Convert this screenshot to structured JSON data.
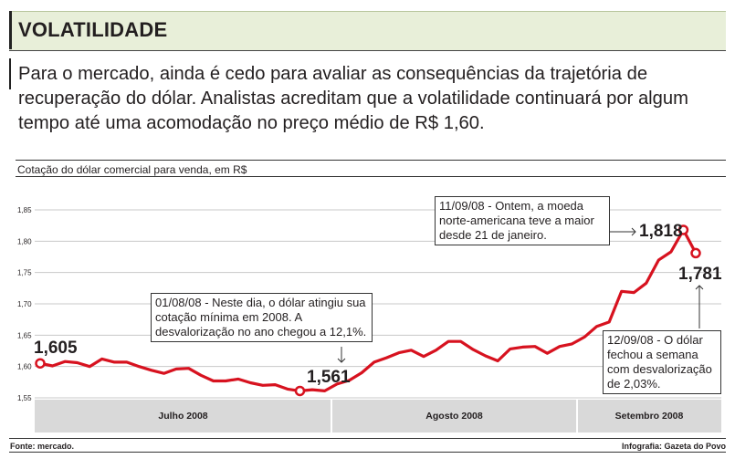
{
  "header": {
    "title": "VOLATILIDADE"
  },
  "intro": "Para o mercado, ainda é cedo para avaliar as consequências da trajetória de recuperação do dólar. Analistas acreditam que a volatilidade continuará por algum tempo até uma acomodação no preço médio de R$ 1,60.",
  "colors": {
    "line": "#d7121f",
    "grid": "#c8c8c8",
    "band": "#d9d9d9",
    "header_bg": "#e8efd9"
  },
  "chart_data": {
    "type": "line",
    "title": "Cotação do dólar comercial para venda, em R$",
    "ylim": [
      1.55,
      1.85
    ],
    "y_ticks": [
      "1,85",
      "1,80",
      "1,75",
      "1,70",
      "1,65",
      "1,60",
      "1,55"
    ],
    "y_tick_values": [
      1.85,
      1.8,
      1.75,
      1.7,
      1.65,
      1.6,
      1.55
    ],
    "grid": true,
    "months": [
      {
        "label": "Julho 2008",
        "start": 0,
        "end": 21
      },
      {
        "label": "Agosto 2008",
        "start": 21,
        "end": 38
      },
      {
        "label": "Setembro 2008",
        "start": 38,
        "end": 47
      }
    ],
    "series": [
      {
        "name": "Dólar comercial (venda)",
        "values": [
          1.605,
          1.601,
          1.608,
          1.606,
          1.6,
          1.612,
          1.607,
          1.607,
          1.6,
          1.594,
          1.589,
          1.596,
          1.597,
          1.586,
          1.577,
          1.577,
          1.58,
          1.574,
          1.57,
          1.571,
          1.564,
          1.561,
          1.563,
          1.561,
          1.572,
          1.578,
          1.59,
          1.607,
          1.614,
          1.622,
          1.626,
          1.616,
          1.626,
          1.64,
          1.64,
          1.627,
          1.617,
          1.609,
          1.628,
          1.631,
          1.632,
          1.621,
          1.632,
          1.636,
          1.647,
          1.664,
          1.671,
          1.72,
          1.718,
          1.733,
          1.77,
          1.783,
          1.818,
          1.781
        ]
      }
    ],
    "highlights": [
      {
        "index": 0,
        "label": "1,605"
      },
      {
        "index": 21,
        "label": "1,561"
      },
      {
        "index": 52,
        "label": "1,818"
      },
      {
        "index": 53,
        "label": "1,781"
      }
    ],
    "annotations": [
      {
        "text": "01/08/08 - Neste dia, o dólar atingiu sua cotação mínima em 2008. A desvalorização no ano chegou a 12,1%."
      },
      {
        "text": "11/09/08 - Ontem, a moeda norte-americana teve a maior desde 21 de janeiro."
      },
      {
        "text": "12/09/08 - O dólar fechou a semana com desvalorização de 2,03%."
      }
    ]
  },
  "footer": {
    "source": "Fonte: mercado.",
    "credit": "Infografia: Gazeta do Povo"
  }
}
